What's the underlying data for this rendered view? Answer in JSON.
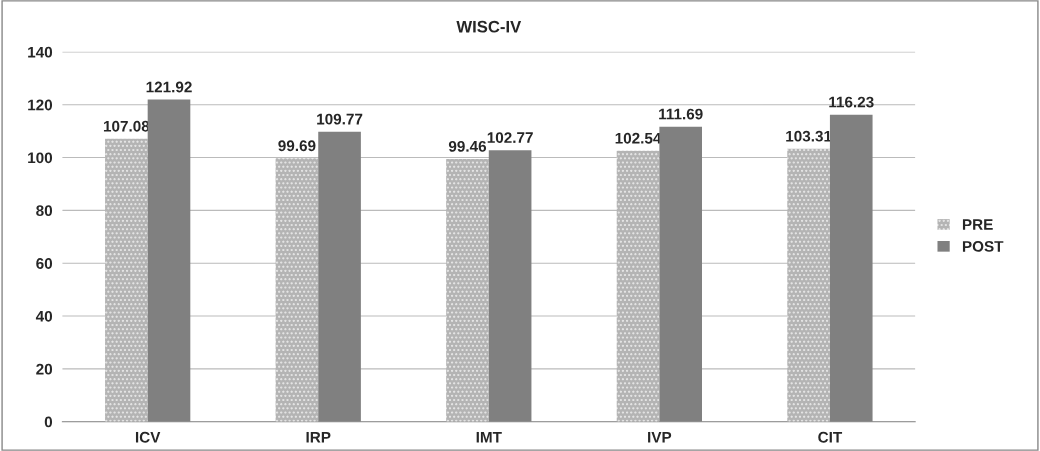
{
  "chart_data": {
    "type": "bar",
    "title": "WISC-IV",
    "categories": [
      "ICV",
      "IRP",
      "IMT",
      "IVP",
      "CIT"
    ],
    "series": [
      {
        "name": "PRE",
        "color": "#b4b4b4",
        "values": [
          107.08,
          99.69,
          99.46,
          102.54,
          103.31
        ]
      },
      {
        "name": "POST",
        "color": "#808080",
        "values": [
          121.92,
          109.77,
          102.77,
          111.69,
          116.23
        ]
      }
    ],
    "ylim": [
      0,
      140
    ],
    "yticks": [
      0,
      20,
      40,
      60,
      80,
      100,
      120,
      140
    ],
    "grid": "y",
    "legend": "right",
    "data_labels": true
  }
}
